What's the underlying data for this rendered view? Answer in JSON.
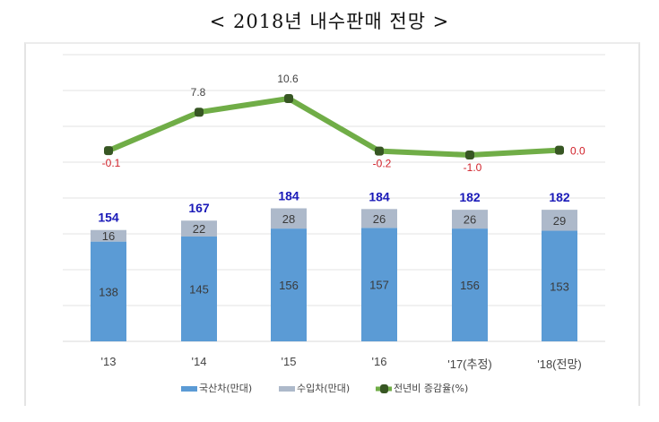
{
  "title": "< 2018년 내수판매 전망 >",
  "chart_data": {
    "type": "bar+line",
    "title": "< 2018년 내수판매 전망 >",
    "categories": [
      "'13",
      "'14",
      "'15",
      "'16",
      "'17(추정)",
      "'18(전망)"
    ],
    "series": [
      {
        "name": "국산차(만대)",
        "type": "bar",
        "stack": "sales",
        "color": "#5b9bd5",
        "values": [
          138,
          145,
          156,
          157,
          156,
          153
        ]
      },
      {
        "name": "수입차(만대)",
        "type": "bar",
        "stack": "sales",
        "color": "#adb9ca",
        "values": [
          16,
          22,
          28,
          26,
          26,
          29
        ]
      },
      {
        "name": "전년비 증감율(%)",
        "type": "line",
        "color": "#70ad47",
        "marker_color": "#375623",
        "values": [
          -0.1,
          7.8,
          10.6,
          -0.2,
          -1.0,
          0.0
        ]
      }
    ],
    "totals": [
      154,
      167,
      184,
      184,
      182,
      182
    ],
    "total_label_color": "#1a1ab8",
    "negative_label_color": "#d0212a",
    "grid": true,
    "legend": "bottom-center",
    "legend_entries": [
      "국산차(만대)",
      "수입차(만대)",
      "전년비 증감율(%)"
    ],
    "bar_axis_range": [
      0,
      240
    ],
    "line_display_range": [
      -1.0,
      10.6
    ]
  }
}
